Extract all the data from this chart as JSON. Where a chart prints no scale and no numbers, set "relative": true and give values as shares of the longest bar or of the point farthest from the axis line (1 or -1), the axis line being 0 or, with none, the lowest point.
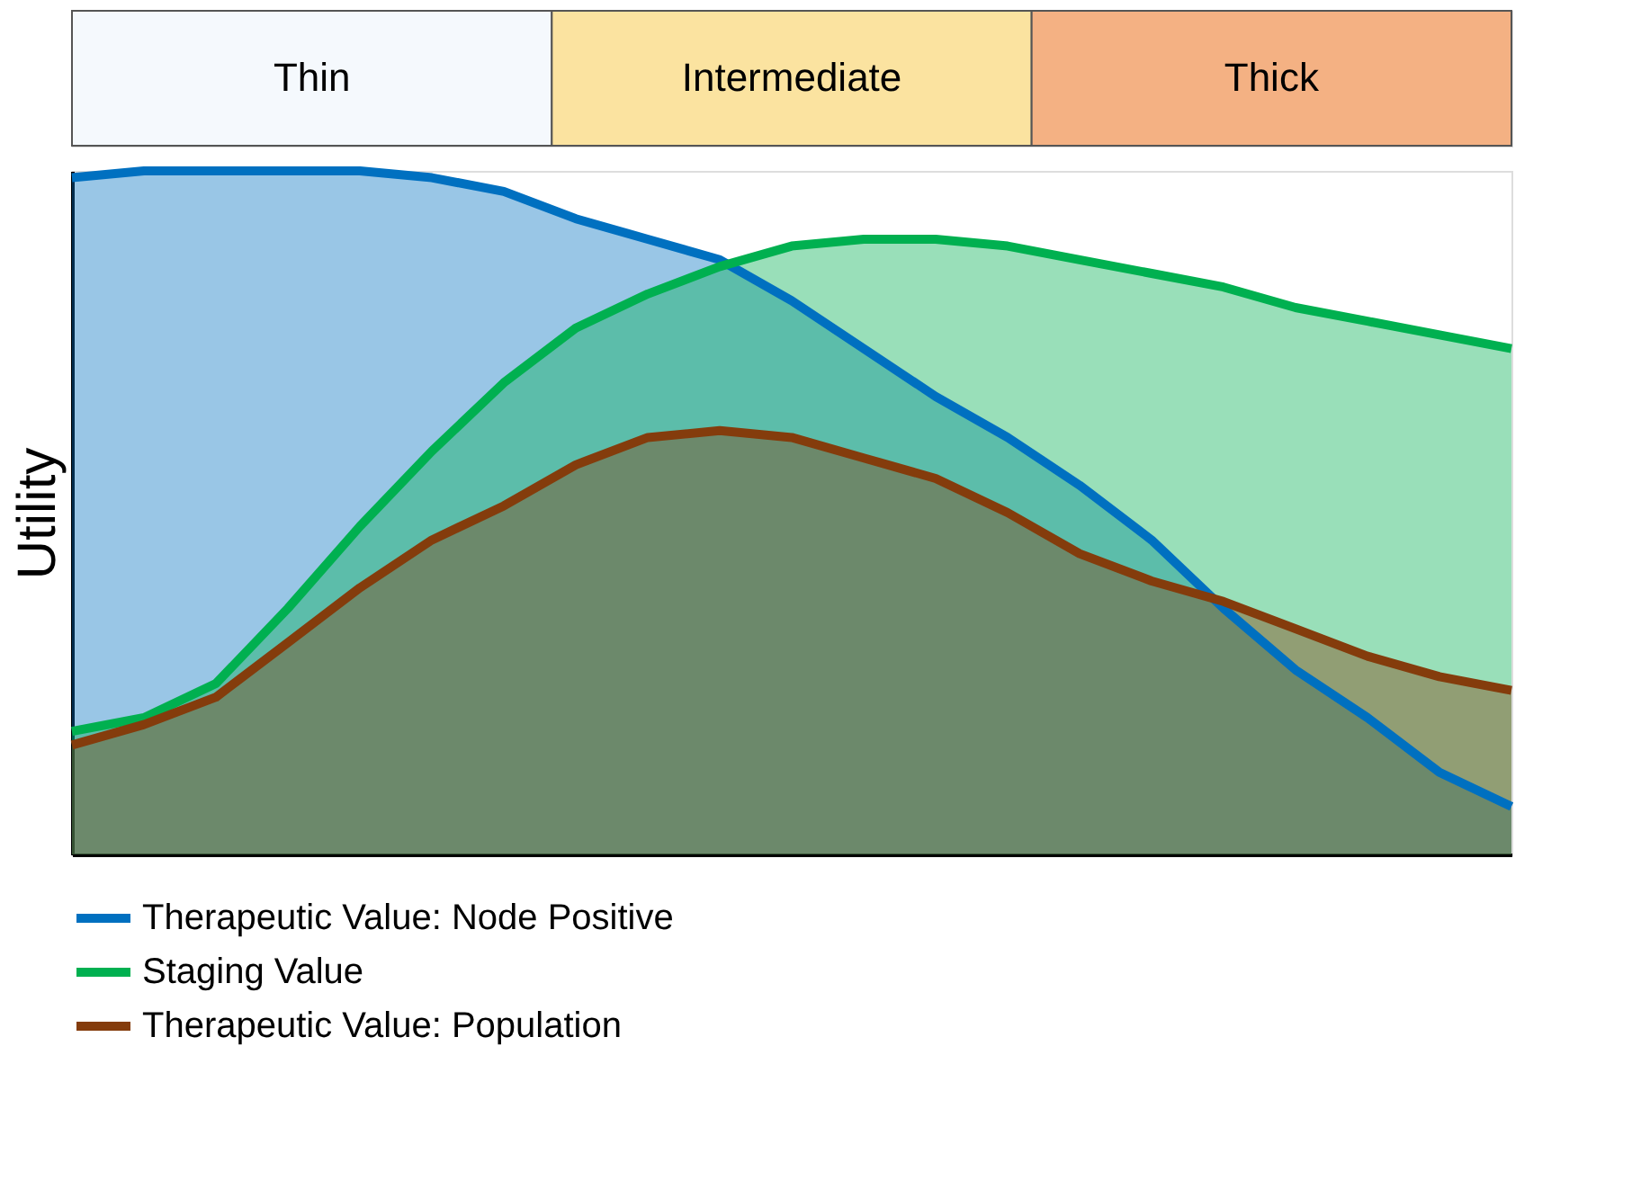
{
  "chart_data": {
    "type": "area",
    "relative": true,
    "ylabel": "Utility",
    "grid": false,
    "legend": "bottom",
    "annotations": [
      "Thin",
      "Intermediate",
      "Thick"
    ],
    "categories": [
      null,
      null,
      null,
      null,
      null,
      null,
      null,
      null,
      null,
      null,
      null,
      null,
      null,
      null,
      null,
      null,
      null,
      null,
      null,
      null,
      null
    ],
    "series": [
      {
        "name": "Therapeutic Value: Node Positive",
        "color": "#0070c0",
        "values": [
          0.99,
          1.0,
          1.0,
          1.0,
          1.0,
          0.99,
          0.97,
          0.93,
          0.9,
          0.87,
          0.81,
          0.74,
          0.67,
          0.61,
          0.54,
          0.46,
          0.36,
          0.27,
          0.2,
          0.12,
          0.07
        ]
      },
      {
        "name": "Staging Value",
        "color": "#00b050",
        "values": [
          0.18,
          0.2,
          0.25,
          0.36,
          0.48,
          0.59,
          0.69,
          0.77,
          0.82,
          0.86,
          0.89,
          0.9,
          0.9,
          0.89,
          0.87,
          0.85,
          0.83,
          0.8,
          0.78,
          0.76,
          0.74
        ]
      },
      {
        "name": "Therapeutic Value: Population",
        "color": "#843c0c",
        "values": [
          0.16,
          0.19,
          0.23,
          0.31,
          0.39,
          0.46,
          0.51,
          0.57,
          0.61,
          0.62,
          0.61,
          0.58,
          0.55,
          0.5,
          0.44,
          0.4,
          0.37,
          0.33,
          0.29,
          0.26,
          0.24
        ]
      }
    ]
  }
}
